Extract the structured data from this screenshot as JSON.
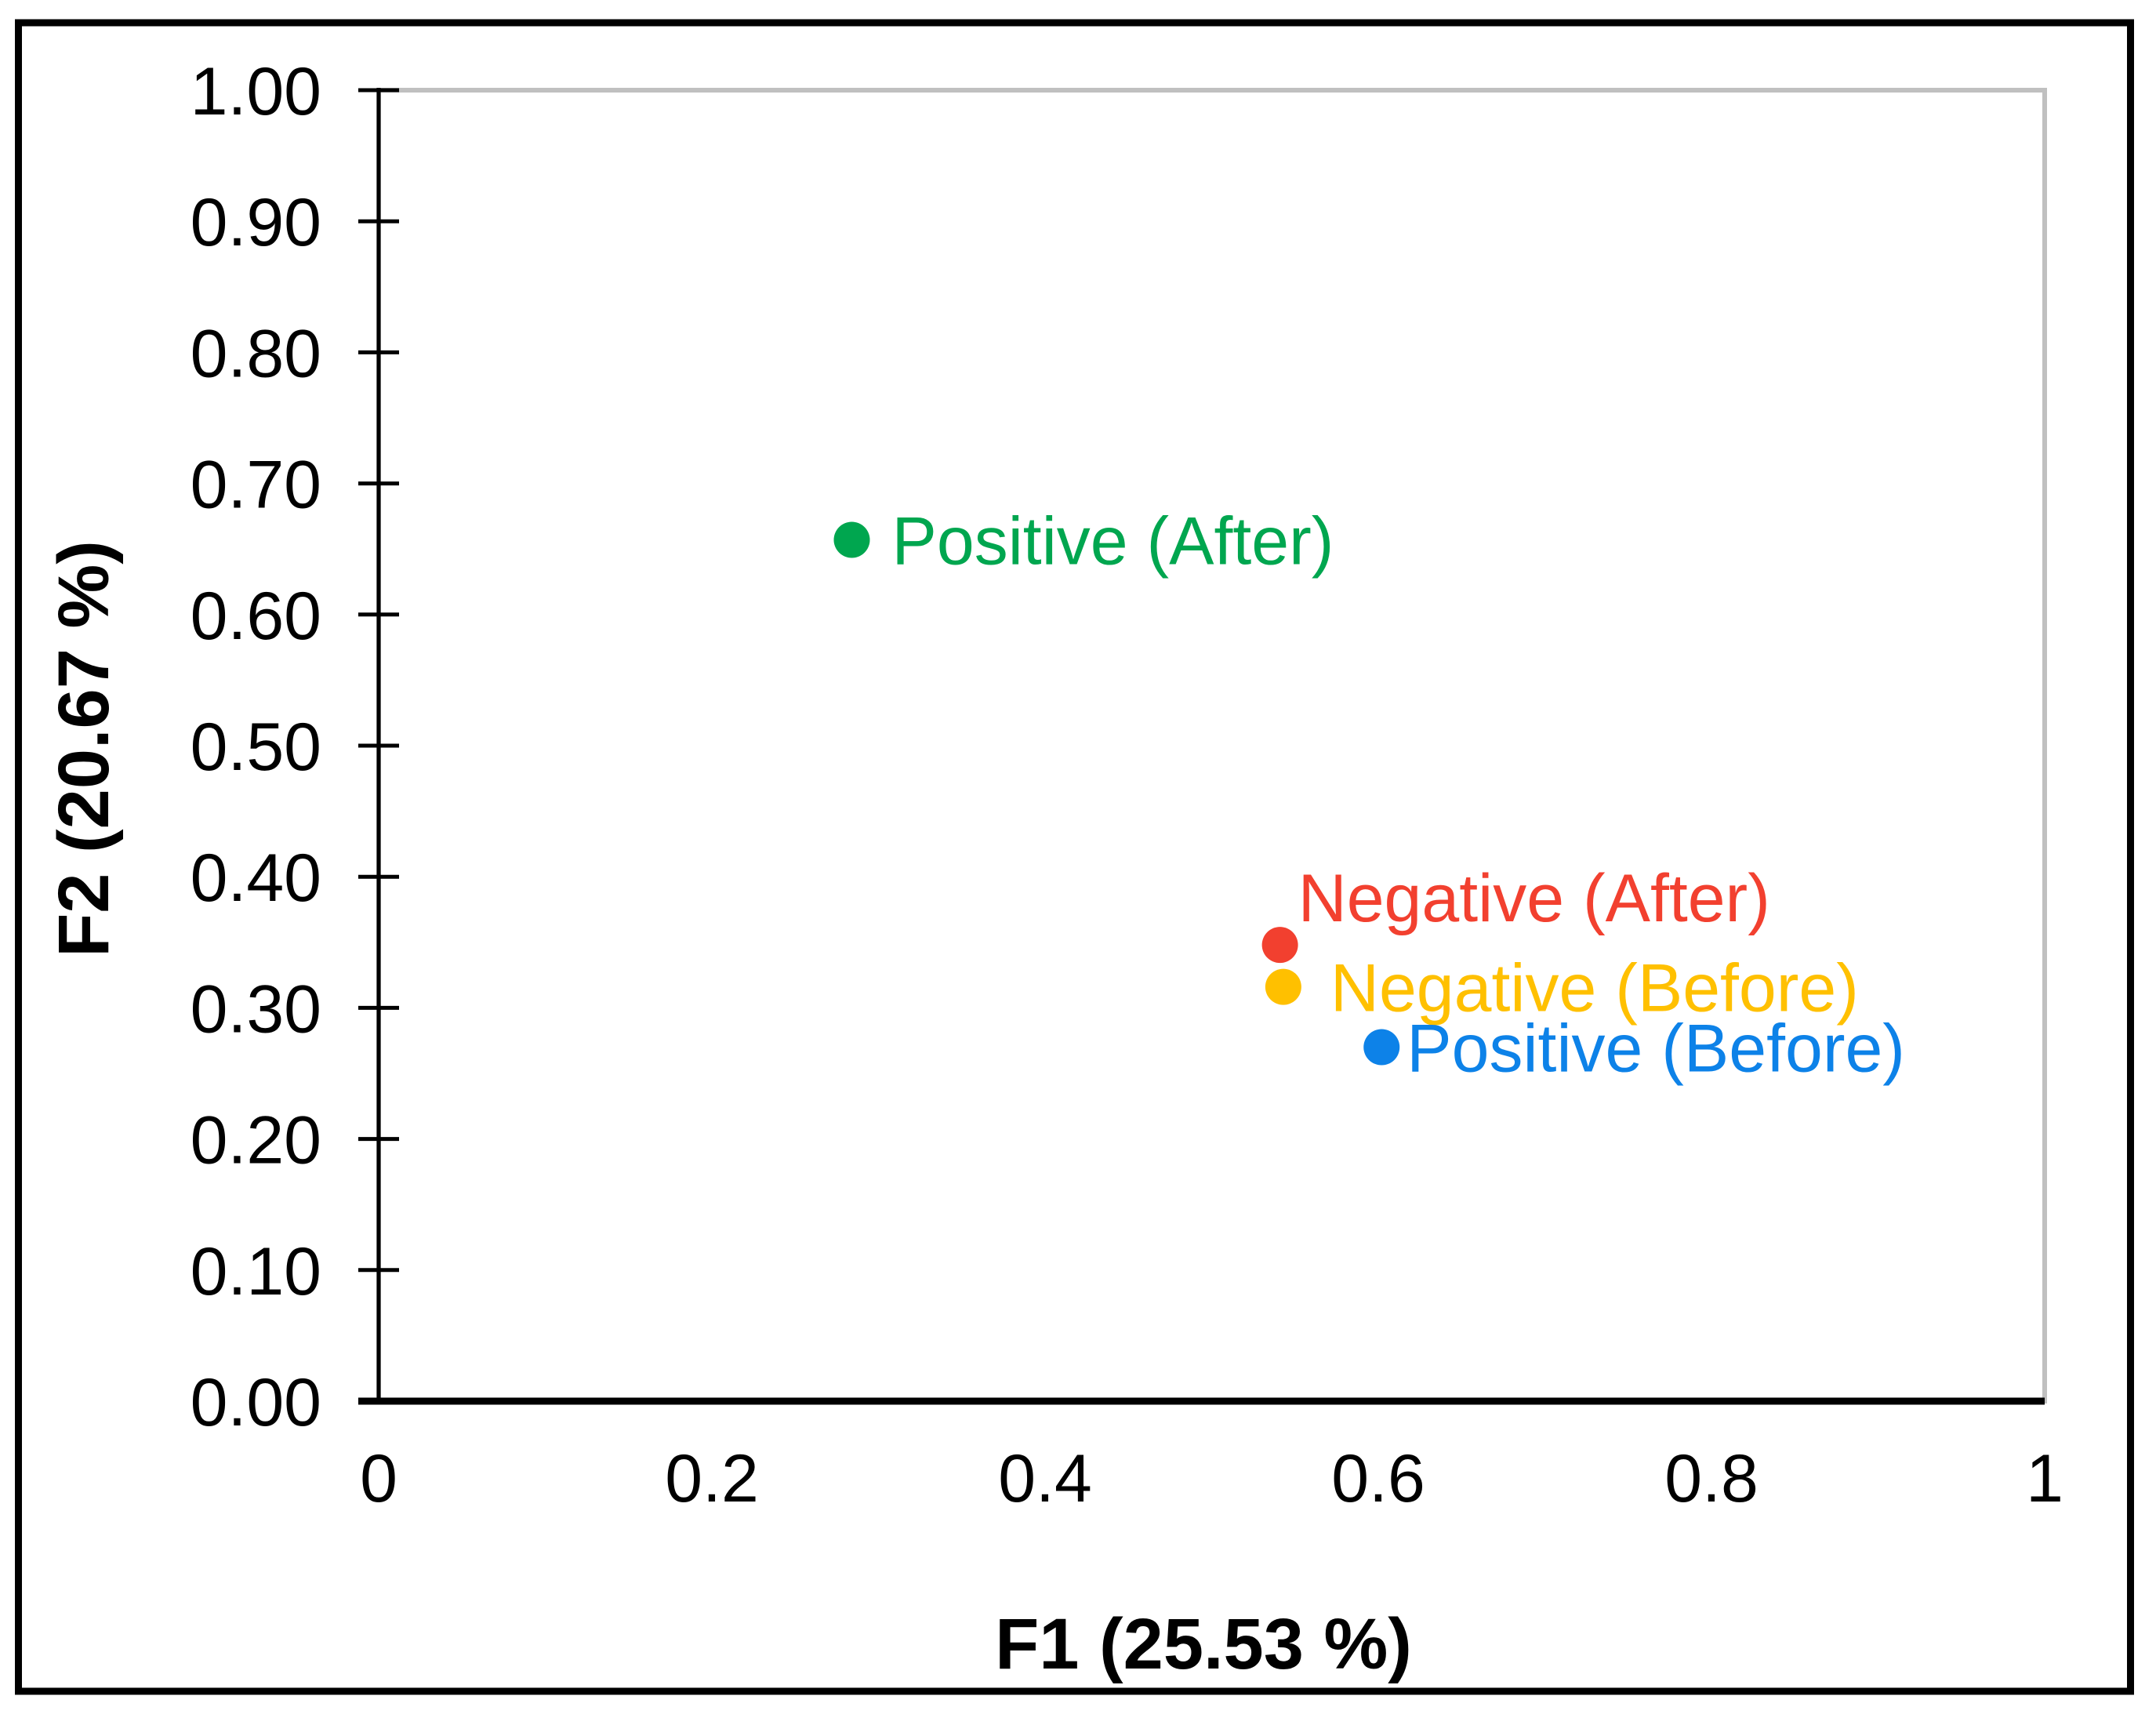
{
  "figure": {
    "background_color": "#FFFFFF",
    "border_color": "#000000",
    "plot_border_color": "#C0C0C0",
    "axis_color": "#000000"
  },
  "chart_data": {
    "type": "scatter",
    "title": "",
    "xlabel": "F1 (25.53 %)",
    "ylabel": "F2 (20.67 %)",
    "xlim": [
      0,
      1
    ],
    "ylim": [
      0,
      1
    ],
    "grid": false,
    "legend_position": "inline-point-labels",
    "x_ticks": [
      0,
      0.2,
      0.4,
      0.6,
      0.8,
      1
    ],
    "x_tick_labels": [
      "0",
      "0.2",
      "0.4",
      "0.6",
      "0.8",
      "1"
    ],
    "y_ticks": [
      0,
      0.1,
      0.2,
      0.3,
      0.4,
      0.5,
      0.6,
      0.7,
      0.8,
      0.9,
      1
    ],
    "y_tick_labels": [
      "0.00",
      "0.10",
      "0.20",
      "0.30",
      "0.40",
      "0.50",
      "0.60",
      "0.70",
      "0.80",
      "0.90",
      "1.00"
    ],
    "points": [
      {
        "label": "Positive (After)",
        "x": 0.284,
        "y": 0.657,
        "color": "#00A64F",
        "label_offset": [
          51,
          31
        ]
      },
      {
        "label": "Negative (After)",
        "x": 0.541,
        "y": 0.348,
        "color": "#F2402F",
        "label_offset": [
          23,
          -30
        ]
      },
      {
        "label": "Negative (Before)",
        "x": 0.543,
        "y": 0.316,
        "color": "#FFC000",
        "label_offset": [
          60,
          31
        ]
      },
      {
        "label": "Positive (Before)",
        "x": 0.602,
        "y": 0.27,
        "color": "#0D82E8",
        "label_offset": [
          32,
          31
        ]
      }
    ]
  }
}
